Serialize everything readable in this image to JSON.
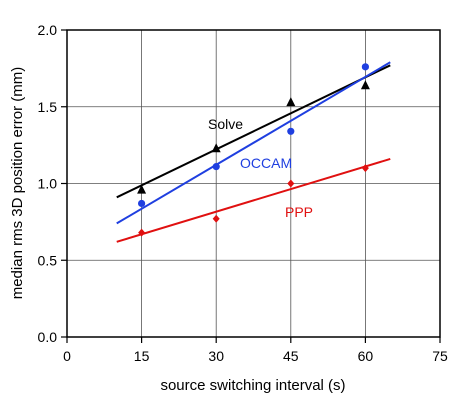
{
  "chart_data": {
    "type": "scatter",
    "xlabel": "source switching interval (s)",
    "ylabel": "median rms 3D position error (mm)",
    "xlim": [
      0,
      75
    ],
    "ylim": [
      0,
      2.0
    ],
    "x_ticks": [
      "0",
      "15",
      "30",
      "45",
      "60",
      "75"
    ],
    "y_ticks": [
      "0.0",
      "0.5",
      "1.0",
      "1.5",
      "2.0"
    ],
    "grid": true,
    "series": [
      {
        "name": "Solve",
        "color": "#000000",
        "marker": "triangle",
        "x": [
          15,
          30,
          45,
          60
        ],
        "y": [
          0.96,
          1.23,
          1.53,
          1.64
        ],
        "fit": {
          "x": [
            10,
            65
          ],
          "y": [
            0.91,
            1.77
          ]
        }
      },
      {
        "name": "OCCAM",
        "color": "#1f3fe0",
        "marker": "circle",
        "x": [
          15,
          30,
          45,
          60
        ],
        "y": [
          0.87,
          1.11,
          1.34,
          1.76
        ],
        "fit": {
          "x": [
            10,
            65
          ],
          "y": [
            0.74,
            1.79
          ]
        }
      },
      {
        "name": "PPP",
        "color": "#e01010",
        "marker": "diamond",
        "x": [
          15,
          30,
          45,
          60
        ],
        "y": [
          0.68,
          0.77,
          1.0,
          1.1
        ],
        "fit": {
          "x": [
            10,
            65
          ],
          "y": [
            0.62,
            1.16
          ]
        }
      }
    ]
  }
}
